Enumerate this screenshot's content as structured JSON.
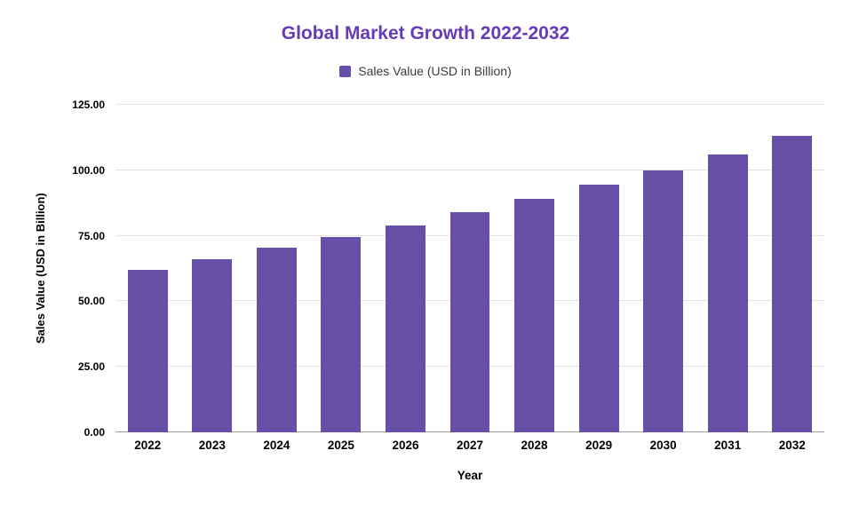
{
  "title": "Global Market Growth 2022-2032",
  "legend": {
    "label": "Sales Value (USD in Billion)",
    "swatch_color": "#674ea7"
  },
  "chart_data": {
    "type": "bar",
    "title": "Global Market Growth 2022-2032",
    "xlabel": "Year",
    "ylabel": "Sales Value (USD in Billion)",
    "categories": [
      "2022",
      "2023",
      "2024",
      "2025",
      "2026",
      "2027",
      "2028",
      "2029",
      "2030",
      "2031",
      "2032"
    ],
    "values": [
      62,
      66,
      70.3,
      74.5,
      79,
      84,
      89,
      94.5,
      100,
      106,
      113
    ],
    "ylim": [
      0,
      125
    ],
    "yticks": [
      0,
      25,
      50,
      75,
      100,
      125
    ],
    "ytick_labels": [
      "0.00",
      "25.00",
      "50.00",
      "75.00",
      "100.00",
      "125.00"
    ],
    "bar_color": "#674ea7",
    "grid": true,
    "legend_position": "top"
  },
  "colors": {
    "title": "#673ab7",
    "bar": "#674ea7",
    "gridline": "#e3e3e3",
    "baseline": "#9e9e9e",
    "text": "#000000"
  }
}
